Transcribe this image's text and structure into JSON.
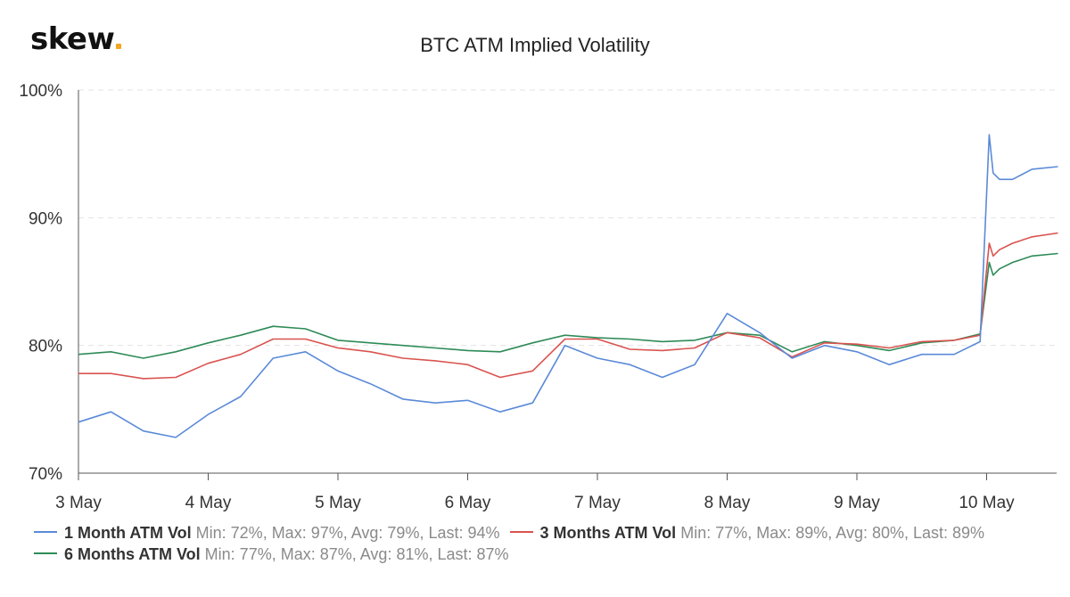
{
  "brand": {
    "name": "skew",
    "accent": "#f5a623"
  },
  "chart_data": {
    "type": "line",
    "title": "BTC ATM Implied Volatility",
    "ylim": [
      70,
      100
    ],
    "yticks": [
      "100%",
      "90%",
      "80%",
      "70%"
    ],
    "ytick_values": [
      100,
      90,
      80,
      70
    ],
    "xlim": [
      0,
      7.55
    ],
    "xticks": [
      "3 May",
      "4 May",
      "5 May",
      "6 May",
      "7 May",
      "8 May",
      "9 May",
      "10 May"
    ],
    "grid": true,
    "legend_position": "bottom-left",
    "x": [
      0,
      0.25,
      0.5,
      0.75,
      1.0,
      1.25,
      1.5,
      1.75,
      2.0,
      2.25,
      2.5,
      2.75,
      3.0,
      3.25,
      3.5,
      3.75,
      4.0,
      4.25,
      4.5,
      4.75,
      5.0,
      5.25,
      5.5,
      5.75,
      6.0,
      6.25,
      6.5,
      6.75,
      6.95,
      7.02,
      7.05,
      7.1,
      7.2,
      7.35,
      7.55
    ],
    "series": [
      {
        "name": "1 Month ATM Vol",
        "color": "#5b8ad8",
        "stats": "Min: 72%, Max: 97%, Avg: 79%, Last: 94%",
        "values": [
          74.0,
          74.8,
          73.3,
          72.8,
          74.6,
          76.0,
          79.0,
          79.5,
          78.0,
          77.0,
          75.8,
          75.5,
          75.7,
          74.8,
          75.5,
          80.0,
          79.0,
          78.5,
          77.5,
          78.5,
          82.5,
          81.0,
          79.0,
          80.0,
          79.5,
          78.5,
          79.3,
          79.3,
          80.3,
          96.5,
          93.5,
          93.0,
          93.0,
          93.8,
          94.0
        ]
      },
      {
        "name": "3 Months ATM Vol",
        "color": "#d9534f",
        "stats": "Min: 77%, Max: 89%, Avg: 80%, Last: 89%",
        "values": [
          77.8,
          77.8,
          77.4,
          77.5,
          78.6,
          79.3,
          80.5,
          80.5,
          79.8,
          79.5,
          79.0,
          78.8,
          78.5,
          77.5,
          78.0,
          80.5,
          80.5,
          79.7,
          79.6,
          79.8,
          81.0,
          80.6,
          79.1,
          80.2,
          80.1,
          79.8,
          80.3,
          80.4,
          80.8,
          88.0,
          87.0,
          87.5,
          88.0,
          88.5,
          88.8
        ]
      },
      {
        "name": "6 Months ATM Vol",
        "color": "#2e8b57",
        "stats": "Min: 77%, Max: 87%, Avg: 81%, Last: 87%",
        "values": [
          79.3,
          79.5,
          79.0,
          79.5,
          80.2,
          80.8,
          81.5,
          81.3,
          80.4,
          80.2,
          80.0,
          79.8,
          79.6,
          79.5,
          80.2,
          80.8,
          80.6,
          80.5,
          80.3,
          80.4,
          81.0,
          80.8,
          79.5,
          80.3,
          80.0,
          79.6,
          80.2,
          80.4,
          80.9,
          86.5,
          85.5,
          86.0,
          86.5,
          87.0,
          87.2
        ]
      }
    ]
  }
}
